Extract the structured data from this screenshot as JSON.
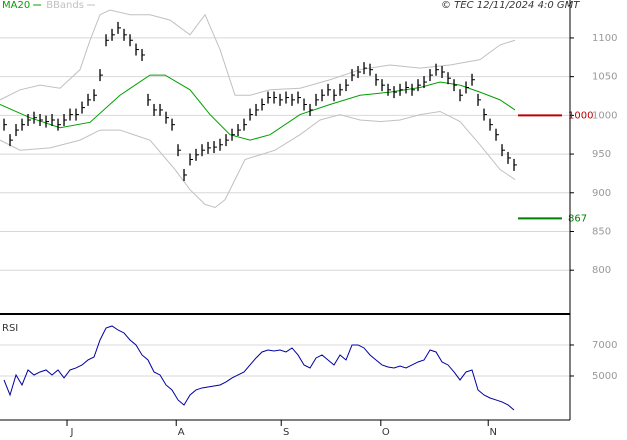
{
  "chart_data": [
    {
      "type": "bar-line",
      "stamp": "© TEC 12/11/2024 4:0 GMT",
      "values": [
        988,
        968,
        981,
        988,
        994,
        997,
        994,
        992,
        994,
        988,
        994,
        1001,
        1001,
        1010,
        1020,
        1026,
        1052,
        1097,
        1104,
        1113,
        1104,
        1097,
        1085,
        1078,
        1020,
        1007,
        1007,
        997,
        988,
        955,
        923,
        943,
        949,
        955,
        958,
        959,
        962,
        968,
        975,
        981,
        988,
        1001,
        1007,
        1014,
        1023,
        1023,
        1020,
        1023,
        1020,
        1023,
        1014,
        1007,
        1020,
        1026,
        1033,
        1026,
        1033,
        1039,
        1052,
        1056,
        1061,
        1059,
        1046,
        1039,
        1033,
        1030,
        1033,
        1036,
        1033,
        1039,
        1043,
        1052,
        1059,
        1056,
        1048,
        1039,
        1026,
        1036,
        1046,
        1020,
        1001,
        988,
        975,
        955,
        945,
        936
      ],
      "color": "#000000",
      "series": [
        {
          "name": "MA20",
          "color": "#00a000",
          "x": [
            -0.67,
            4.33,
            9.33,
            14.33,
            19.33,
            24.33,
            26.83,
            31,
            34.33,
            37.67,
            41,
            44.33,
            49.33,
            54.33,
            59.33,
            64.33,
            69.33,
            72.67,
            76,
            79.33,
            82.67,
            85.17
          ],
          "values": [
            1014,
            997,
            984,
            991,
            1026,
            1052,
            1052,
            1033,
            1001,
            975,
            968,
            975,
            1001,
            1014,
            1026,
            1030,
            1036,
            1043,
            1039,
            1030,
            1020,
            1007
          ]
        },
        {
          "name": "BBands",
          "color": "#c0c0c0",
          "x": [
            -0.67,
            2.67,
            6,
            9.33,
            12.67,
            14.33,
            16,
            17.67,
            21,
            24.33,
            27.67,
            31,
            33.5,
            36,
            38.5,
            41,
            44.33,
            49.33,
            54.33,
            59.33,
            64.33,
            69.33,
            74.33,
            79.33,
            82.67,
            85.17
          ],
          "values": [
            1020,
            1033,
            1039,
            1035,
            1059,
            1097,
            1130,
            1136,
            1130,
            1130,
            1123,
            1104,
            1130,
            1085,
            1026,
            1026,
            1033,
            1035,
            1046,
            1059,
            1065,
            1061,
            1065,
            1072,
            1091,
            1097
          ],
          "x2": [
            -0.67,
            2.67,
            7.67,
            12.67,
            16,
            19.33,
            24.33,
            28.5,
            31,
            33.5,
            35.17,
            36.83,
            38.5,
            40.17,
            42.67,
            45.17,
            49.33,
            52.67,
            56,
            59.33,
            62.67,
            66,
            69.33,
            72.67,
            76,
            79.33,
            82.67,
            85.17
          ],
          "values2": [
            968,
            955,
            958,
            968,
            981,
            981,
            968,
            930,
            904,
            885,
            881,
            891,
            917,
            943,
            949,
            955,
            975,
            994,
            1001,
            994,
            992,
            994,
            1001,
            1005,
            992,
            962,
            930,
            917
          ]
        }
      ],
      "levels": [
        {
          "value": 1000,
          "color": "#c00000"
        },
        {
          "value": 867,
          "color": "#008000"
        }
      ],
      "xlim": [
        -0.67,
        94.33
      ],
      "xticks": [
        {
          "value": 10.5,
          "label": "J"
        },
        {
          "value": 28.7,
          "label": "A"
        },
        {
          "value": 46.2,
          "label": "S"
        },
        {
          "value": 62.8,
          "label": "O"
        },
        {
          "value": 80.7,
          "label": "N"
        }
      ],
      "ylim": [
        746,
        1149
      ],
      "yticks": [
        800,
        850,
        900,
        950,
        1000,
        1050,
        1100
      ],
      "grid": true
    },
    {
      "type": "line",
      "title": "RSI",
      "values": [
        4742,
        3775,
        5065,
        4420,
        5388,
        5065,
        5258,
        5388,
        5065,
        5388,
        4872,
        5388,
        5517,
        5710,
        6033,
        6226,
        7323,
        8097,
        8226,
        7968,
        7774,
        7323,
        7000,
        6355,
        6033,
        5258,
        5065,
        4420,
        4098,
        3453,
        3131,
        3775,
        4098,
        4227,
        4291,
        4356,
        4420,
        4614,
        4872,
        5065,
        5258,
        5710,
        6162,
        6549,
        6678,
        6613,
        6678,
        6549,
        6807,
        6355,
        5710,
        5517,
        6162,
        6355,
        6033,
        5710,
        6355,
        6033,
        7000,
        7000,
        6807,
        6355,
        6033,
        5710,
        5581,
        5517,
        5646,
        5517,
        5710,
        5904,
        6033,
        6678,
        6549,
        5904,
        5710,
        5258,
        4742,
        5258,
        5388,
        4098,
        3775,
        3581,
        3453,
        3324,
        3131,
        2808
      ],
      "color": "#0000a0",
      "ylim": [
        2160,
        8870
      ],
      "yticks": [
        5000,
        7000
      ],
      "grid": true
    }
  ]
}
